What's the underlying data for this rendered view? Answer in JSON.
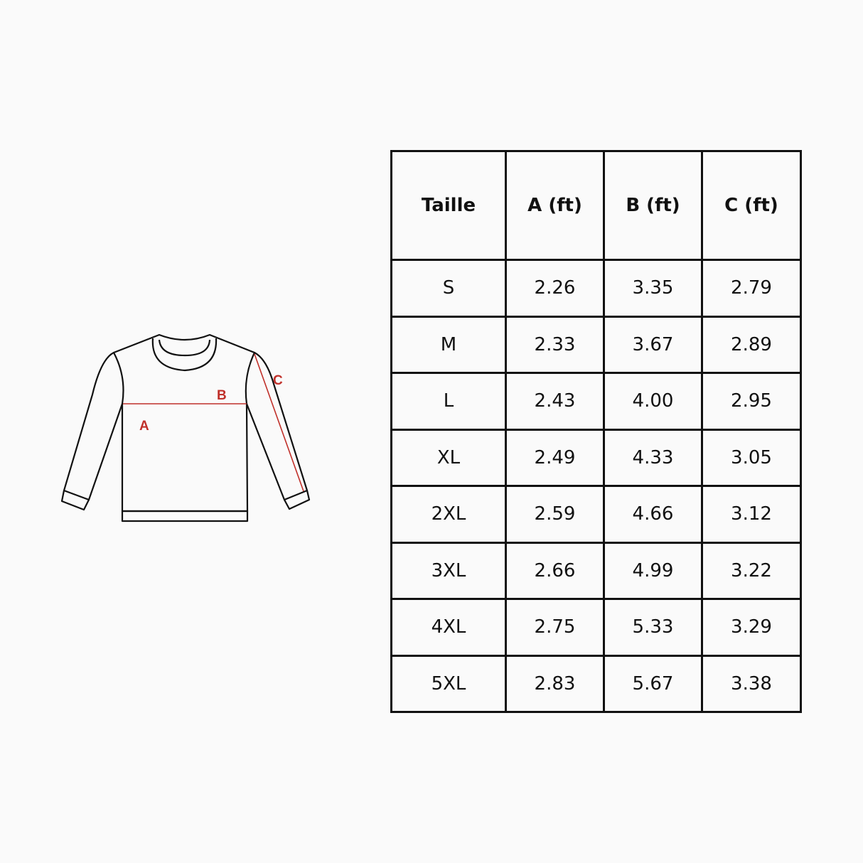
{
  "diagram": {
    "labels": {
      "a": "A",
      "b": "B",
      "c": "C"
    },
    "accent_color": "#c0302a"
  },
  "table": {
    "headers": [
      "Taille",
      "A (ft)",
      "B (ft)",
      "C (ft)"
    ],
    "rows": [
      [
        "S",
        "2.26",
        "3.35",
        "2.79"
      ],
      [
        "M",
        "2.33",
        "3.67",
        "2.89"
      ],
      [
        "L",
        "2.43",
        "4.00",
        "2.95"
      ],
      [
        "XL",
        "2.49",
        "4.33",
        "3.05"
      ],
      [
        "2XL",
        "2.59",
        "4.66",
        "3.12"
      ],
      [
        "3XL",
        "2.66",
        "4.99",
        "3.22"
      ],
      [
        "4XL",
        "2.75",
        "5.33",
        "3.29"
      ],
      [
        "5XL",
        "2.83",
        "5.67",
        "3.38"
      ]
    ]
  }
}
